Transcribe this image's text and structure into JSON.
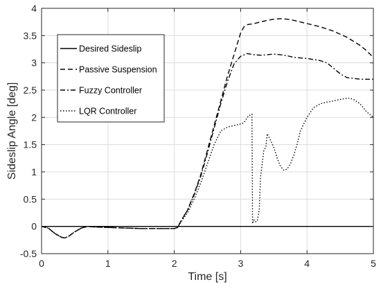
{
  "chart_data": {
    "type": "line",
    "xlabel": "Time [s]",
    "ylabel": "Sideslip Angle [deg]",
    "xlim": [
      0,
      5
    ],
    "ylim": [
      -0.5,
      4
    ],
    "xticks": [
      0,
      1,
      2,
      3,
      4,
      5
    ],
    "xtick_labels": [
      "0",
      "1",
      "2",
      "3",
      "4",
      "5"
    ],
    "yticks": [
      -0.5,
      0,
      0.5,
      1,
      1.5,
      2,
      2.5,
      3,
      3.5,
      4
    ],
    "ytick_labels": [
      "-0.5",
      "0",
      "0.5",
      "1",
      "1.5",
      "2",
      "2.5",
      "3",
      "3.5",
      "4"
    ],
    "grid": true,
    "legend_position": "top-left",
    "series": [
      {
        "name": "Desired Sideslip",
        "dash": "solid",
        "x": [
          0,
          5
        ],
        "y": [
          0,
          0
        ]
      },
      {
        "name": "Passive Suspension",
        "dash": "dashed",
        "x": [
          0,
          0.1,
          0.2,
          0.3,
          0.35,
          0.4,
          0.5,
          0.6,
          0.7,
          0.8,
          1.0,
          1.5,
          2.0,
          2.05,
          2.1,
          2.2,
          2.3,
          2.4,
          2.5,
          2.6,
          2.7,
          2.8,
          2.9,
          3.0,
          3.05,
          3.1,
          3.2,
          3.3,
          3.4,
          3.5,
          3.6,
          3.7,
          3.8,
          3.9,
          4.0,
          4.2,
          4.4,
          4.6,
          4.8,
          4.9,
          5.0
        ],
        "y": [
          0,
          -0.03,
          -0.13,
          -0.2,
          -0.21,
          -0.19,
          -0.1,
          -0.03,
          0,
          -0.01,
          -0.02,
          -0.04,
          -0.04,
          -0.02,
          0.1,
          0.3,
          0.6,
          0.95,
          1.4,
          1.85,
          2.3,
          2.75,
          3.15,
          3.55,
          3.66,
          3.7,
          3.72,
          3.75,
          3.78,
          3.8,
          3.81,
          3.8,
          3.78,
          3.75,
          3.72,
          3.66,
          3.58,
          3.47,
          3.32,
          3.22,
          3.1
        ]
      },
      {
        "name": "Fuzzy Controller",
        "dash": "dashdot",
        "x": [
          0,
          0.1,
          0.2,
          0.3,
          0.35,
          0.4,
          0.5,
          0.6,
          0.7,
          0.8,
          1.0,
          1.5,
          2.0,
          2.05,
          2.1,
          2.2,
          2.3,
          2.4,
          2.5,
          2.6,
          2.7,
          2.8,
          2.9,
          3.0,
          3.1,
          3.2,
          3.3,
          3.4,
          3.5,
          3.6,
          3.7,
          3.8,
          3.9,
          4.0,
          4.1,
          4.2,
          4.3,
          4.4,
          4.5,
          4.6,
          4.8,
          5.0
        ],
        "y": [
          0,
          -0.03,
          -0.13,
          -0.2,
          -0.21,
          -0.19,
          -0.1,
          -0.03,
          0,
          -0.01,
          -0.02,
          -0.04,
          -0.04,
          -0.02,
          0.1,
          0.3,
          0.58,
          0.92,
          1.35,
          1.8,
          2.25,
          2.65,
          2.98,
          3.12,
          3.17,
          3.15,
          3.14,
          3.15,
          3.16,
          3.15,
          3.13,
          3.1,
          3.09,
          3.08,
          3.06,
          3.04,
          3.0,
          2.9,
          2.8,
          2.73,
          2.7,
          2.7
        ]
      },
      {
        "name": "LQR Controller",
        "dash": "dotted",
        "x": [
          0,
          0.1,
          0.2,
          0.3,
          0.35,
          0.4,
          0.5,
          0.6,
          0.7,
          0.8,
          1.0,
          1.5,
          2.0,
          2.05,
          2.1,
          2.2,
          2.3,
          2.4,
          2.5,
          2.6,
          2.7,
          2.8,
          2.9,
          3.0,
          3.05,
          3.1,
          3.15,
          3.17,
          3.18,
          3.19,
          3.2,
          3.22,
          3.25,
          3.28,
          3.3,
          3.35,
          3.38,
          3.4,
          3.45,
          3.5,
          3.55,
          3.6,
          3.65,
          3.7,
          3.75,
          3.8,
          3.85,
          3.9,
          4.0,
          4.1,
          4.2,
          4.3,
          4.4,
          4.5,
          4.6,
          4.65,
          4.7,
          4.8,
          4.9,
          5.0
        ],
        "y": [
          0,
          -0.03,
          -0.13,
          -0.2,
          -0.21,
          -0.19,
          -0.1,
          -0.03,
          0,
          -0.01,
          -0.02,
          -0.04,
          -0.04,
          -0.02,
          0.08,
          0.25,
          0.5,
          0.8,
          1.15,
          1.5,
          1.75,
          1.82,
          1.85,
          1.88,
          1.9,
          2.0,
          2.05,
          2.06,
          0.05,
          0.1,
          0.12,
          0.08,
          0.1,
          0.3,
          0.9,
          1.4,
          1.45,
          1.7,
          1.58,
          1.45,
          1.25,
          1.1,
          1.03,
          1.05,
          1.15,
          1.3,
          1.5,
          1.75,
          2.0,
          2.18,
          2.25,
          2.28,
          2.3,
          2.33,
          2.35,
          2.35,
          2.33,
          2.25,
          2.1,
          2.0
        ]
      }
    ]
  }
}
